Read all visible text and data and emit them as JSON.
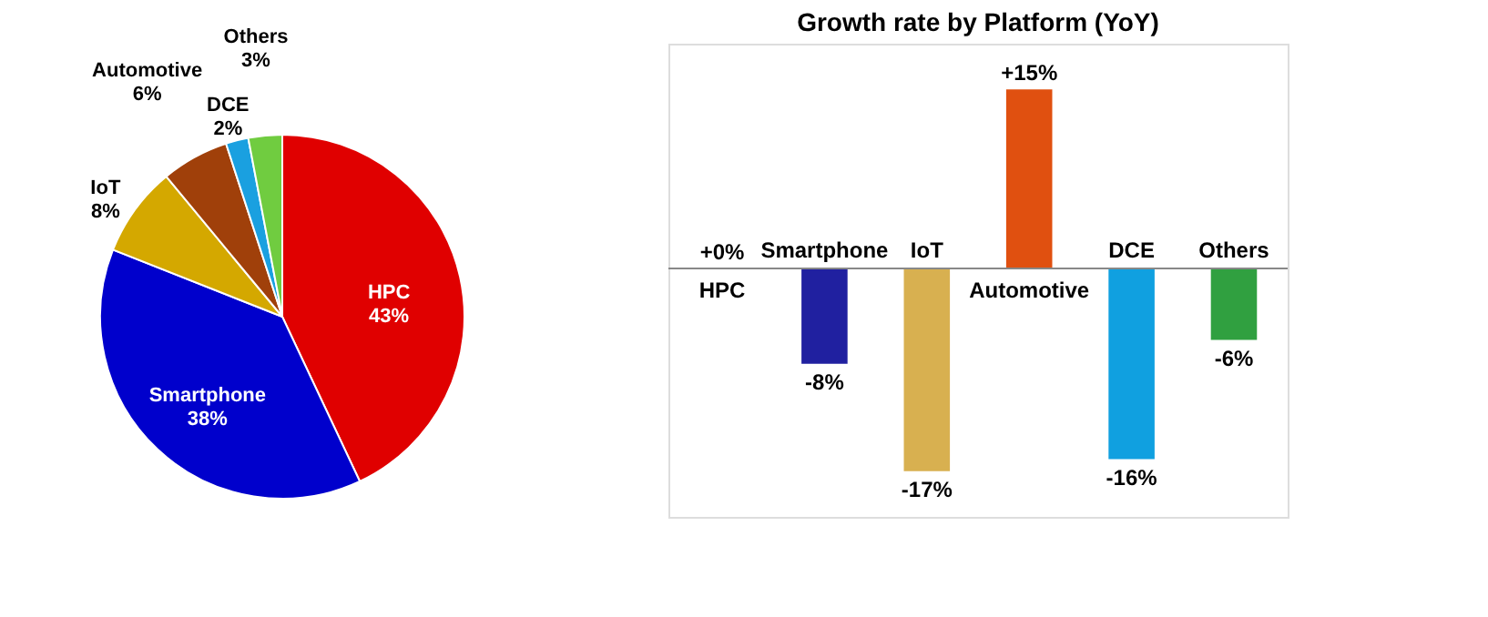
{
  "chart_data": [
    {
      "type": "pie",
      "categories": [
        "HPC",
        "Smartphone",
        "IoT",
        "Automotive",
        "DCE",
        "Others"
      ],
      "values": [
        43,
        38,
        8,
        6,
        2,
        3
      ],
      "colors": [
        "#e00000",
        "#0000cc",
        "#d4a800",
        "#a0400a",
        "#1aa0e0",
        "#70cc40"
      ],
      "value_labels": [
        "43%",
        "38%",
        "8%",
        "6%",
        "2%",
        "3%"
      ]
    },
    {
      "type": "bar",
      "title": "Growth rate by Platform (YoY)",
      "categories": [
        "HPC",
        "Smartphone",
        "IoT",
        "Automotive",
        "DCE",
        "Others"
      ],
      "values": [
        0,
        -8,
        -17,
        15,
        -16,
        -6
      ],
      "colors": [
        "#e03020",
        "#2020a0",
        "#d8b050",
        "#e05010",
        "#10a0e0",
        "#30a040"
      ],
      "value_labels": [
        "+0%",
        "-8%",
        "-17%",
        "+15%",
        "-16%",
        "-6%"
      ]
    }
  ]
}
